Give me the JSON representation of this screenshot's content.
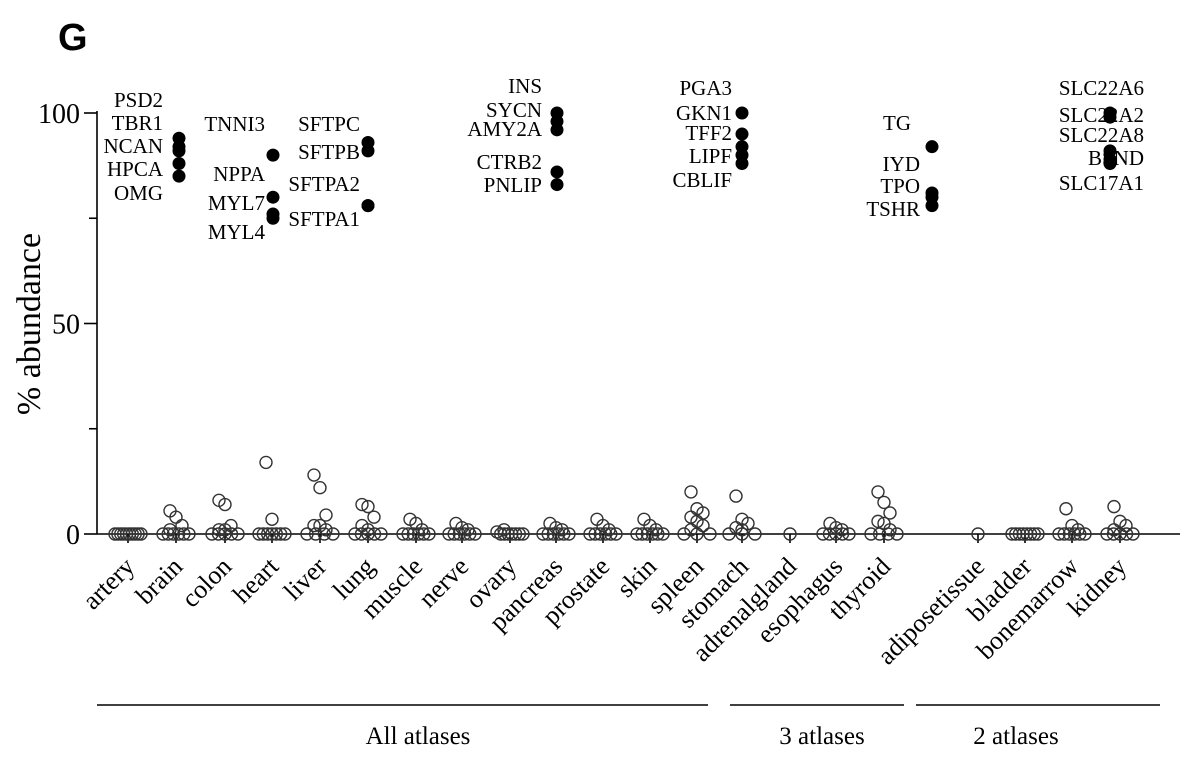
{
  "panel_label": "G",
  "chart_data": {
    "type": "scatter",
    "ylabel": "% abundance",
    "ylim": [
      0,
      100
    ],
    "yticks": [
      0,
      50,
      100
    ],
    "y_minor_ticks": [
      25,
      75
    ],
    "categories": [
      "artery",
      "brain",
      "colon",
      "heart",
      "liver",
      "lung",
      "muscle",
      "nerve",
      "ovary",
      "pancreas",
      "prostate",
      "skin",
      "spleen",
      "stomach",
      "adrenalgland",
      "esophagus",
      "thyroid",
      "adiposetissue",
      "bladder",
      "bonemarrow",
      "kidney"
    ],
    "groups": [
      {
        "label": "All atlases",
        "categories": [
          "artery",
          "brain",
          "colon",
          "heart",
          "liver",
          "lung",
          "muscle",
          "nerve",
          "ovary",
          "pancreas",
          "prostate",
          "skin",
          "spleen",
          "stomach"
        ]
      },
      {
        "label": "3 atlases",
        "categories": [
          "adrenalgland",
          "esophagus",
          "thyroid"
        ]
      },
      {
        "label": "2 atlases",
        "categories": [
          "adiposetissue",
          "bladder",
          "bonemarrow",
          "kidney"
        ]
      }
    ],
    "open_points": {
      "artery": [
        0,
        0,
        0,
        0,
        0,
        0,
        0,
        0,
        0,
        0
      ],
      "brain": [
        5.5,
        4,
        2,
        1,
        0,
        0,
        0,
        0,
        0,
        0
      ],
      "colon": [
        8,
        7,
        2,
        1,
        1,
        0,
        0,
        0,
        0,
        0
      ],
      "heart": [
        17,
        3.5,
        0,
        0,
        0,
        0,
        0,
        0,
        0
      ],
      "liver": [
        14,
        11,
        4.5,
        2,
        2,
        1,
        0,
        0,
        0,
        0
      ],
      "lung": [
        7,
        6.5,
        4,
        2,
        1,
        0,
        0,
        0,
        0,
        0
      ],
      "muscle": [
        3.5,
        2.5,
        1,
        0,
        0,
        0,
        0,
        0,
        0
      ],
      "nerve": [
        2.5,
        1.5,
        1,
        0,
        0,
        0,
        0,
        0,
        0
      ],
      "ovary": [
        1,
        0.5,
        0,
        0,
        0,
        0,
        0,
        0,
        0
      ],
      "pancreas": [
        2.5,
        1.5,
        1,
        0,
        0,
        0,
        0,
        0,
        0
      ],
      "prostate": [
        3.5,
        2,
        1,
        0,
        0,
        0,
        0,
        0,
        0
      ],
      "skin": [
        3.5,
        2,
        1,
        0,
        0,
        0,
        0,
        0,
        0
      ],
      "spleen": [
        10,
        6,
        5,
        4,
        3,
        2,
        1,
        0,
        0,
        0
      ],
      "stomach": [
        9,
        3.5,
        2.5,
        1.5,
        1,
        0,
        0,
        0
      ],
      "adrenalgland": [
        0
      ],
      "esophagus": [
        2.5,
        1.5,
        1,
        0,
        0,
        0,
        0,
        0
      ],
      "thyroid": [
        10,
        7.5,
        5,
        3,
        2.5,
        1,
        0,
        0,
        0,
        0
      ],
      "adiposetissue": [
        0
      ],
      "bladder": [
        0,
        0,
        0,
        0,
        0,
        0,
        0,
        0
      ],
      "bonemarrow": [
        6,
        2,
        1,
        0,
        0,
        0,
        0,
        0,
        0
      ],
      "kidney": [
        6.5,
        3,
        2,
        1,
        0,
        0,
        0,
        0,
        0
      ],
      "adrenalgland_single": [
        0
      ],
      "adiposetissue_single": [
        0
      ]
    },
    "filled_points": [
      {
        "category": "brain",
        "label": "PSD2",
        "value": 94
      },
      {
        "category": "brain",
        "label": "TBR1",
        "value": 92
      },
      {
        "category": "brain",
        "label": "NCAN",
        "value": 91
      },
      {
        "category": "brain",
        "label": "HPCA",
        "value": 88
      },
      {
        "category": "brain",
        "label": "OMG",
        "value": 85
      },
      {
        "category": "heart",
        "label": "TNNI3",
        "value": 90
      },
      {
        "category": "heart",
        "label": "NPPA",
        "value": 80
      },
      {
        "category": "heart",
        "label": "MYL7",
        "value": 76
      },
      {
        "category": "heart",
        "label": "MYL4",
        "value": 75
      },
      {
        "category": "lung",
        "label": "SFTPC",
        "value": 93
      },
      {
        "category": "lung",
        "label": "SFTPB",
        "value": 91
      },
      {
        "category": "lung",
        "label": "SFTPA2",
        "value": 78
      },
      {
        "category": "lung",
        "label": "SFTPA1",
        "value": 78
      },
      {
        "category": "pancreas",
        "label": "INS",
        "value": 100
      },
      {
        "category": "pancreas",
        "label": "SYCN",
        "value": 98
      },
      {
        "category": "pancreas",
        "label": "AMY2A",
        "value": 96
      },
      {
        "category": "pancreas",
        "label": "CTRB2",
        "value": 86
      },
      {
        "category": "pancreas",
        "label": "PNLIP",
        "value": 83
      },
      {
        "category": "stomach",
        "label": "PGA3",
        "value": 100
      },
      {
        "category": "stomach",
        "label": "GKN1",
        "value": 95
      },
      {
        "category": "stomach",
        "label": "TFF2",
        "value": 92
      },
      {
        "category": "stomach",
        "label": "LIPF",
        "value": 90
      },
      {
        "category": "stomach",
        "label": "CBLIF",
        "value": 88
      },
      {
        "category": "thyroid",
        "label": "TG",
        "value": 92
      },
      {
        "category": "thyroid",
        "label": "IYD",
        "value": 81
      },
      {
        "category": "thyroid",
        "label": "TPO",
        "value": 80
      },
      {
        "category": "thyroid",
        "label": "TSHR",
        "value": 78
      },
      {
        "category": "kidney",
        "label": "SLC22A6",
        "value": 100
      },
      {
        "category": "kidney",
        "label": "SLC22A2",
        "value": 99
      },
      {
        "category": "kidney",
        "label": "SLC22A8",
        "value": 91
      },
      {
        "category": "kidney",
        "label": "BSND",
        "value": 89
      },
      {
        "category": "kidney",
        "label": "SLC17A1",
        "value": 88
      }
    ],
    "gene_label_columns": [
      {
        "category": "brain",
        "labels": [
          "PSD2",
          "TBR1",
          "NCAN",
          "HPCA",
          "OMG"
        ],
        "label_y": [
          107,
          130,
          153,
          176,
          200
        ]
      },
      {
        "category": "heart",
        "labels": [
          "TNNI3"
        ],
        "label_y": [
          131
        ]
      },
      {
        "category": "heart",
        "labels": [
          "NPPA",
          "MYL7",
          "MYL4"
        ],
        "label_y": [
          181,
          210,
          239
        ]
      },
      {
        "category": "lung",
        "labels": [
          "SFTPC",
          "SFTPB"
        ],
        "label_y": [
          131,
          159
        ]
      },
      {
        "category": "lung",
        "labels": [
          "SFTPA2",
          "SFTPA1"
        ],
        "label_y": [
          191,
          226
        ]
      },
      {
        "category": "pancreas",
        "labels": [
          "INS",
          "SYCN",
          "AMY2A",
          "CTRB2",
          "PNLIP"
        ],
        "label_y": [
          93,
          117,
          136,
          169,
          192
        ]
      },
      {
        "category": "stomach",
        "labels": [
          "PGA3",
          "GKN1",
          "TFF2",
          "LIPF",
          "CBLIF"
        ],
        "label_y": [
          95,
          120,
          140,
          163,
          187
        ]
      },
      {
        "category": "thyroid",
        "labels": [
          "TG"
        ],
        "label_y": [
          130
        ]
      },
      {
        "category": "thyroid",
        "labels": [
          "IYD",
          "TPO",
          "TSHR"
        ],
        "label_y": [
          171,
          193,
          216
        ]
      },
      {
        "category": "kidney",
        "labels": [
          "SLC22A6",
          "SLC22A2",
          "SLC22A8",
          "BSND",
          "SLC17A1"
        ],
        "label_y": [
          95,
          122,
          142,
          165,
          190
        ]
      }
    ],
    "legend": "none",
    "grid": false
  }
}
